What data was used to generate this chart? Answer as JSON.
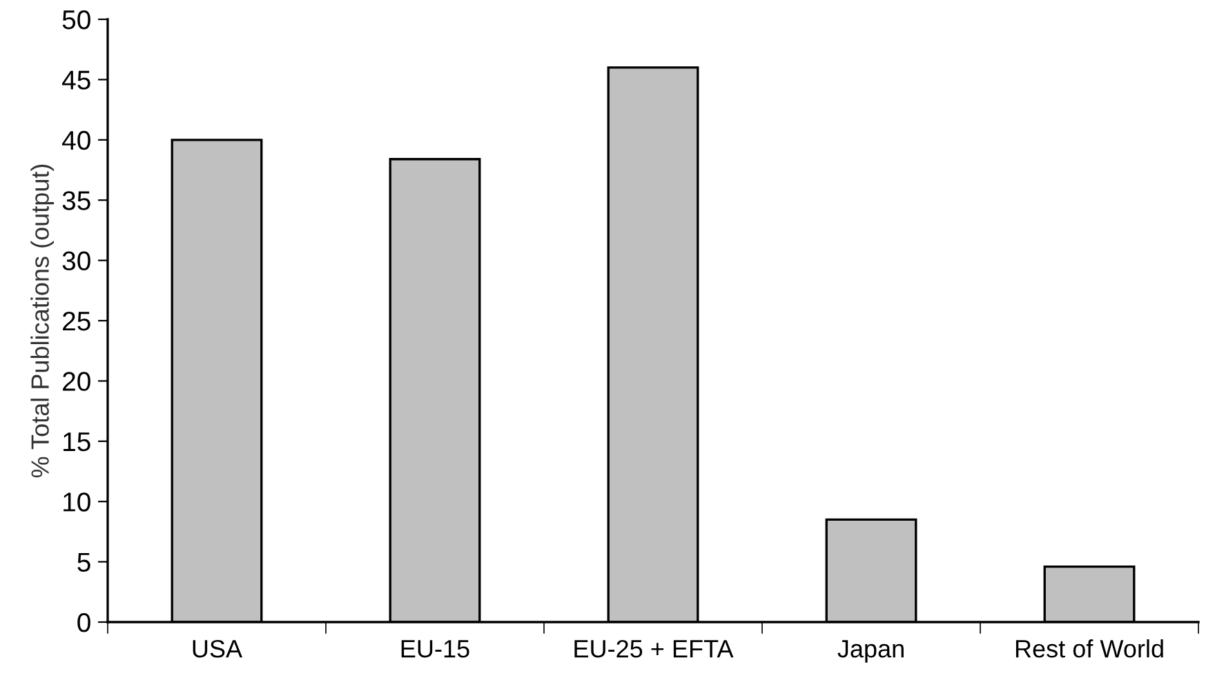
{
  "chart_data": {
    "type": "bar",
    "ylabel": "% Total Publications (output)",
    "categories": [
      "USA",
      "EU-15",
      "EU-25 + EFTA",
      "Japan",
      "Rest of World"
    ],
    "values": [
      40.0,
      38.4,
      46.0,
      8.5,
      4.6
    ],
    "color": "#c0c0c0",
    "ylim": [
      0,
      50
    ],
    "yticks": [
      0,
      5,
      10,
      15,
      20,
      25,
      30,
      35,
      40,
      45,
      50
    ],
    "grid": false,
    "legend": false
  }
}
